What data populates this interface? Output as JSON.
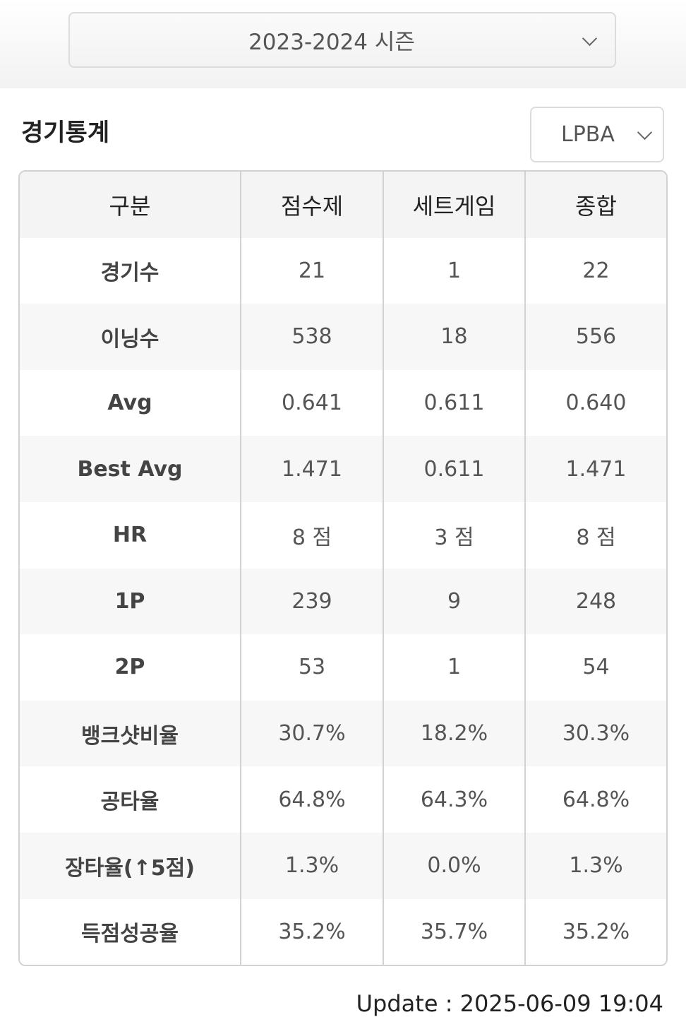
{
  "season_select": {
    "value": "2023-2024 시즌"
  },
  "section": {
    "title": "경기통계"
  },
  "league_select": {
    "value": "LPBA"
  },
  "table": {
    "headers": [
      "구분",
      "점수제",
      "세트게임",
      "종합"
    ],
    "rows": [
      {
        "label": "경기수",
        "values": [
          "21",
          "1",
          "22"
        ]
      },
      {
        "label": "이닝수",
        "values": [
          "538",
          "18",
          "556"
        ]
      },
      {
        "label": "Avg",
        "values": [
          "0.641",
          "0.611",
          "0.640"
        ]
      },
      {
        "label": "Best Avg",
        "values": [
          "1.471",
          "0.611",
          "1.471"
        ]
      },
      {
        "label": "HR",
        "values": [
          "8 점",
          "3 점",
          "8 점"
        ]
      },
      {
        "label": "1P",
        "values": [
          "239",
          "9",
          "248"
        ]
      },
      {
        "label": "2P",
        "values": [
          "53",
          "1",
          "54"
        ]
      },
      {
        "label": "뱅크샷비율",
        "values": [
          "30.7%",
          "18.2%",
          "30.3%"
        ]
      },
      {
        "label": "공타율",
        "values": [
          "64.8%",
          "64.3%",
          "64.8%"
        ]
      },
      {
        "label": "장타율(↑5점)",
        "values": [
          "1.3%",
          "0.0%",
          "1.3%"
        ]
      },
      {
        "label": "득점성공율",
        "values": [
          "35.2%",
          "35.7%",
          "35.2%"
        ]
      }
    ]
  },
  "footer": {
    "update_text": "Update : 2025-06-09 19:04"
  }
}
